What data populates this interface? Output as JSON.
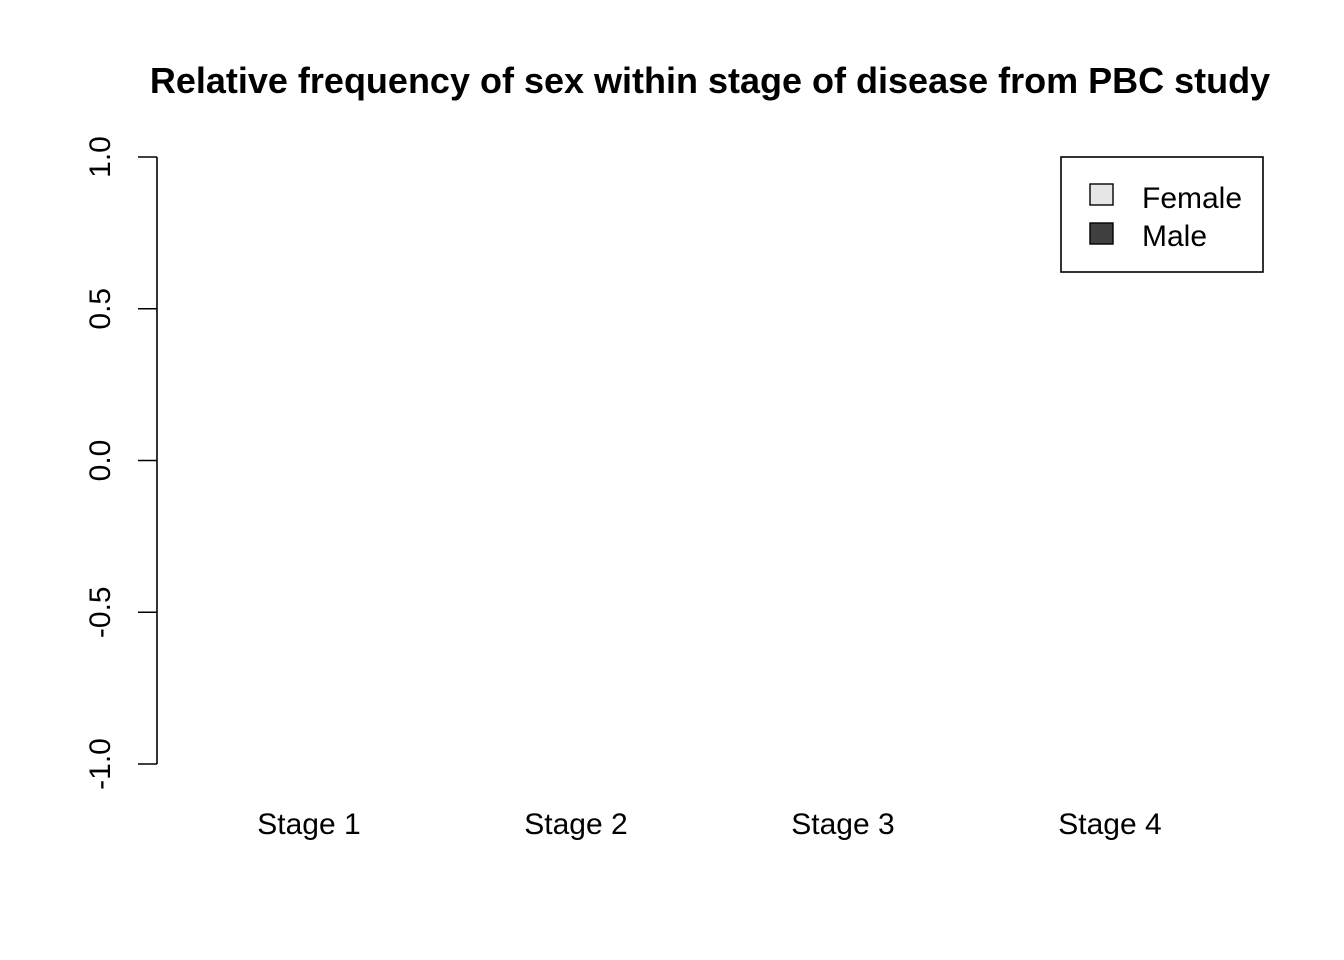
{
  "chart_data": {
    "type": "bar",
    "title": "Relative frequency of sex within stage of disease from PBC study",
    "xlabel": "",
    "ylabel": "",
    "categories": [
      "Stage 1",
      "Stage 2",
      "Stage 3",
      "Stage 4"
    ],
    "series": [
      {
        "name": "Female",
        "values": [
          null,
          null,
          null,
          null
        ],
        "color": "#e6e6e6"
      },
      {
        "name": "Male",
        "values": [
          null,
          null,
          null,
          null
        ],
        "color": "#404040"
      }
    ],
    "ylim": [
      -1.0,
      1.0
    ],
    "yticks": [
      -1.0,
      -0.5,
      0.0,
      0.5,
      1.0
    ],
    "ytick_labels": [
      "-1.0",
      "-0.5",
      "0.0",
      "0.5",
      "1.0"
    ],
    "grid": false,
    "legend_position": "top-right"
  }
}
